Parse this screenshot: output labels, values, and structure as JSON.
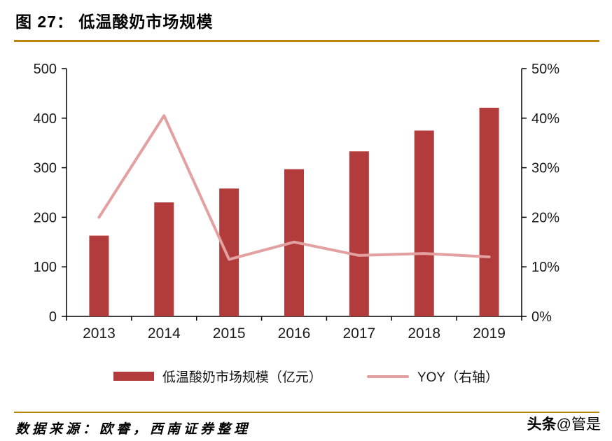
{
  "title": "图 27： 低温酸奶市场规模",
  "footer": {
    "source": "数据来源：欧睿，西南证券整理",
    "watermark_brand": "头条",
    "watermark_handle": "@管是"
  },
  "colors": {
    "bar": "#b23c3c",
    "line": "#e2a0a0",
    "rule": "#b8860b",
    "axis": "#000000",
    "text": "#1a1a1a"
  },
  "chart_data": {
    "type": "bar",
    "categories": [
      "2013",
      "2014",
      "2015",
      "2016",
      "2017",
      "2018",
      "2019"
    ],
    "series": [
      {
        "name": "低温酸奶市场规模（亿元）",
        "kind": "bar",
        "axis": "left",
        "values": [
          163,
          230,
          258,
          297,
          333,
          375,
          421
        ]
      },
      {
        "name": "YOY（右轴）",
        "kind": "line",
        "axis": "right",
        "unit": "%",
        "values": [
          20,
          40.5,
          11.5,
          15,
          12.3,
          12.7,
          12
        ]
      }
    ],
    "left_axis": {
      "min": 0,
      "max": 500,
      "step": 100,
      "ticks": [
        "500",
        "400",
        "300",
        "200",
        "100",
        "0"
      ]
    },
    "right_axis": {
      "min": 0,
      "max": 50,
      "step": 10,
      "ticks": [
        "50%",
        "40%",
        "30%",
        "20%",
        "10%",
        "0%"
      ]
    },
    "grid": "off",
    "legend_position": "bottom",
    "legend": [
      {
        "label": "低温酸奶市场规模（亿元）",
        "swatch": "bar"
      },
      {
        "label": "YOY（右轴）",
        "swatch": "line"
      }
    ]
  }
}
